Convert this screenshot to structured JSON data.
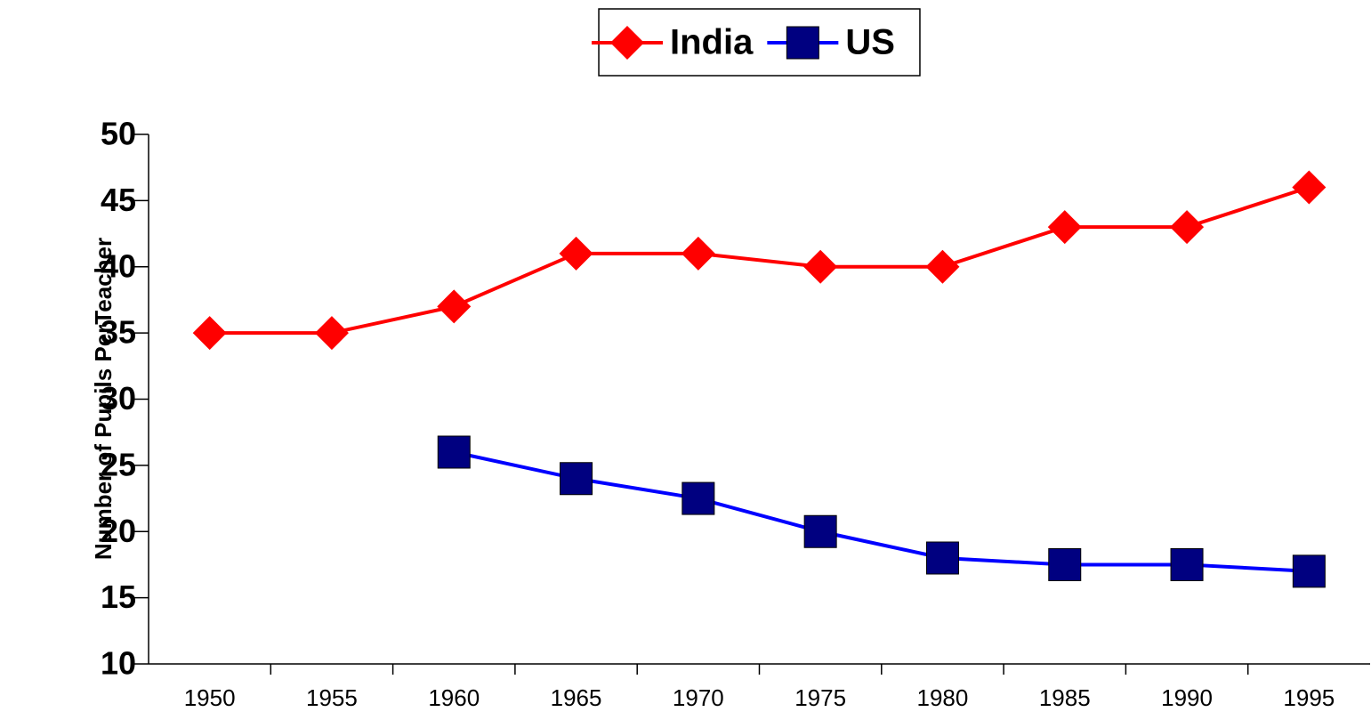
{
  "chart_data": {
    "type": "line",
    "y_label": "Number of Pupils PerTeacher",
    "categories": [
      "1950",
      "1955",
      "1960",
      "1965",
      "1970",
      "1975",
      "1980",
      "1985",
      "1990",
      "1995"
    ],
    "series": [
      {
        "name": "India",
        "color": "#ff0000",
        "marker": "diamond",
        "marker_color": "#ff0000",
        "values": [
          35,
          35,
          37,
          41,
          41,
          40,
          40,
          43,
          43,
          46
        ]
      },
      {
        "name": "US",
        "color": "#0000ff",
        "marker": "square",
        "marker_color": "#000080",
        "values": [
          null,
          null,
          26,
          24,
          22.5,
          20,
          18,
          17.5,
          17.5,
          17
        ]
      }
    ],
    "ylim": [
      10,
      50
    ],
    "yticks": [
      10,
      15,
      20,
      25,
      30,
      35,
      40,
      45,
      50
    ],
    "legend": "top"
  }
}
